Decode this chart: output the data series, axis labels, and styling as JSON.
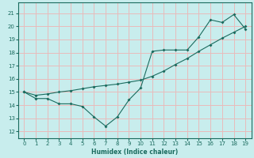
{
  "xlabel": "Humidex (Indice chaleur)",
  "xlim": [
    -0.5,
    19.5
  ],
  "ylim": [
    11.5,
    21.8
  ],
  "yticks": [
    12,
    13,
    14,
    15,
    16,
    17,
    18,
    19,
    20,
    21
  ],
  "xticks": [
    0,
    1,
    2,
    3,
    4,
    5,
    6,
    7,
    8,
    9,
    10,
    11,
    12,
    13,
    14,
    15,
    16,
    17,
    18,
    19
  ],
  "background_color": "#c8eded",
  "grid_color": "#e8bbbb",
  "line_color": "#1a6b5e",
  "line1_x": [
    0,
    1,
    2,
    3,
    4,
    5,
    6,
    7,
    8,
    9,
    10,
    11,
    12,
    13,
    14,
    15,
    16,
    17,
    18,
    19
  ],
  "line1_y": [
    15.0,
    14.5,
    14.5,
    14.1,
    14.1,
    13.9,
    13.1,
    12.4,
    13.1,
    14.4,
    15.3,
    18.1,
    18.2,
    18.2,
    18.2,
    19.2,
    20.5,
    20.3,
    20.9,
    19.8
  ],
  "line2_x": [
    0,
    1,
    2,
    3,
    4,
    5,
    6,
    7,
    8,
    9,
    10,
    11,
    12,
    13,
    14,
    15,
    16,
    17,
    18,
    19
  ],
  "line2_y": [
    15.0,
    14.75,
    14.85,
    15.0,
    15.1,
    15.25,
    15.4,
    15.5,
    15.6,
    15.75,
    15.9,
    16.2,
    16.6,
    17.1,
    17.55,
    18.1,
    18.6,
    19.1,
    19.55,
    20.0
  ]
}
